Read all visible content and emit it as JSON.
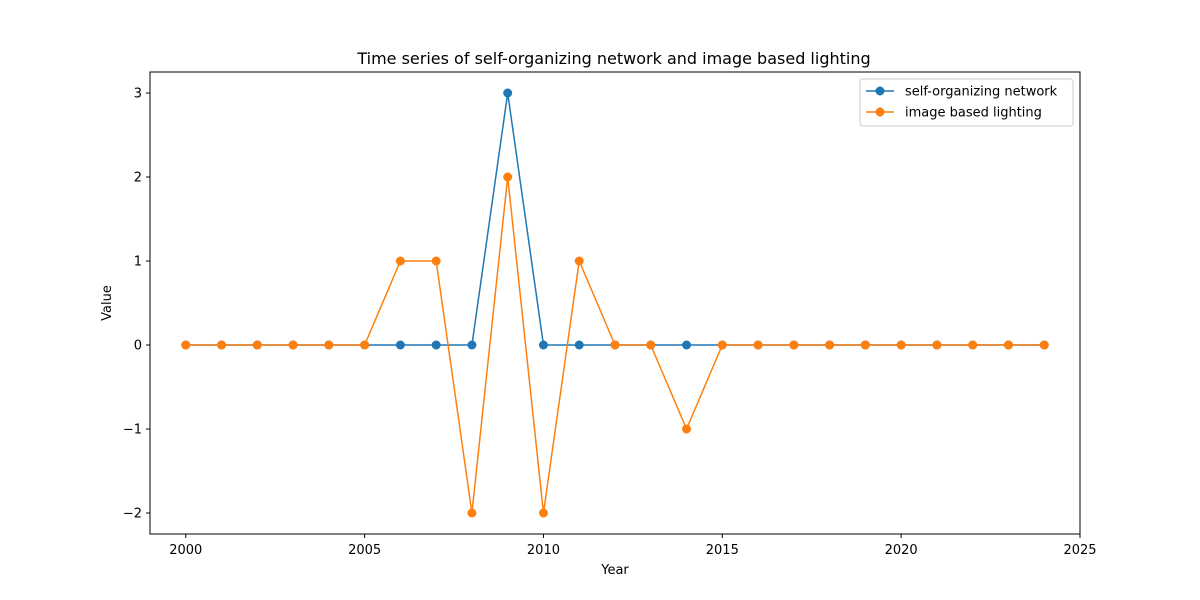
{
  "chart_data": {
    "type": "line",
    "title": "Time series of self-organizing network and image based lighting",
    "xlabel": "Year",
    "ylabel": "Value",
    "xlim": [
      1999,
      2025
    ],
    "ylim": [
      -2.25,
      3.25
    ],
    "xticks": [
      2000,
      2005,
      2010,
      2015,
      2020,
      2025
    ],
    "yticks": [
      -2,
      -1,
      0,
      1,
      2,
      3
    ],
    "ytick_labels": [
      "−2",
      "−1",
      "0",
      "1",
      "2",
      "3"
    ],
    "grid": false,
    "legend_position": "top-right",
    "x": [
      2000,
      2001,
      2002,
      2003,
      2004,
      2005,
      2006,
      2007,
      2008,
      2009,
      2010,
      2011,
      2012,
      2013,
      2014,
      2015,
      2016,
      2017,
      2018,
      2019,
      2020,
      2021,
      2022,
      2023,
      2024
    ],
    "series": [
      {
        "name": "self-organizing network",
        "color": "#1f77b4",
        "values": [
          0,
          0,
          0,
          0,
          0,
          0,
          0,
          0,
          0,
          3,
          0,
          0,
          0,
          0,
          0,
          0,
          0,
          0,
          0,
          0,
          0,
          0,
          0,
          0,
          0
        ]
      },
      {
        "name": "image based lighting",
        "color": "#ff7f0e",
        "values": [
          0,
          0,
          0,
          0,
          0,
          0,
          1,
          1,
          -2,
          2,
          -2,
          1,
          0,
          0,
          -1,
          0,
          0,
          0,
          0,
          0,
          0,
          0,
          0,
          0,
          0
        ]
      }
    ]
  }
}
